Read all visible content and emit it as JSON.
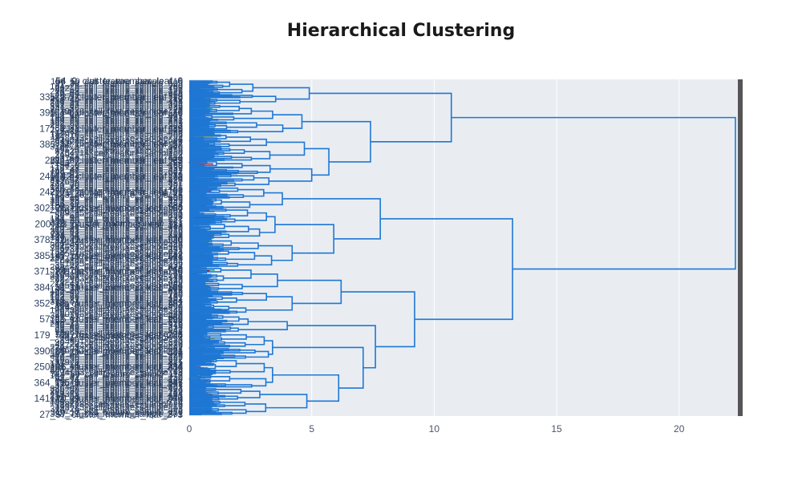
{
  "chart_data": {
    "type": "dendrogram",
    "title": "Hierarchical Clustering",
    "orientation": "horizontal",
    "xlim": [
      0,
      22.4
    ],
    "x_ticks": [
      0,
      5,
      10,
      15,
      20
    ],
    "x_tick_labels": [
      "0",
      "5",
      "10",
      "15",
      "20"
    ],
    "grid": true,
    "legend": "none",
    "link_color": "#1f77d4",
    "background_color": "#e9edf2",
    "leaf_count": 400,
    "visible_leaf_labels": [
      "54",
      "335",
      "390",
      "171",
      "383",
      "281",
      "240",
      "242",
      "302",
      "200",
      "378",
      "385",
      "371",
      "384",
      "352",
      "57",
      "179",
      "390",
      "250",
      "364",
      "141",
      "27"
    ],
    "merge_heights": {
      "root": 22.3,
      "top_cluster": 10.7,
      "bottom_cluster": 13.2,
      "top_a": 4.9,
      "top_b": 7.4,
      "top_b_upper": 4.6,
      "top_b_lower": 5.7,
      "top_b_lower_a": 4.7,
      "top_b_lower_b": 5.0,
      "bottom_upper": 7.8,
      "bottom_upper_a": 3.8,
      "bottom_upper_b": 5.9,
      "bottom_upper_b1": 3.5,
      "bottom_upper_b2": 4.2,
      "bottom_lower": 9.2,
      "bottom_lower_a": 6.2,
      "bottom_lower_a1": 3.6,
      "bottom_lower_a2": 4.2,
      "bottom_lower_b": 7.6,
      "bottom_lower_b1": 4.0,
      "bottom_lower_b2": 7.1,
      "bottom_lower_b2a": 3.4,
      "bottom_lower_b2b": 6.1,
      "bottom_lower_b2b1": 3.4,
      "bottom_lower_b2b2": 4.8
    },
    "colorbar_colors": [
      "#1f77d4",
      "#17becf",
      "#2ca02c",
      "#d62728",
      "#ff7f0e",
      "#9467bd",
      "#8c564b",
      "#e377c2",
      "#7f7f7f",
      "#bcbd22",
      "#ffd700",
      "#111111",
      "#7f1f3f",
      "#2a9d8f"
    ]
  }
}
